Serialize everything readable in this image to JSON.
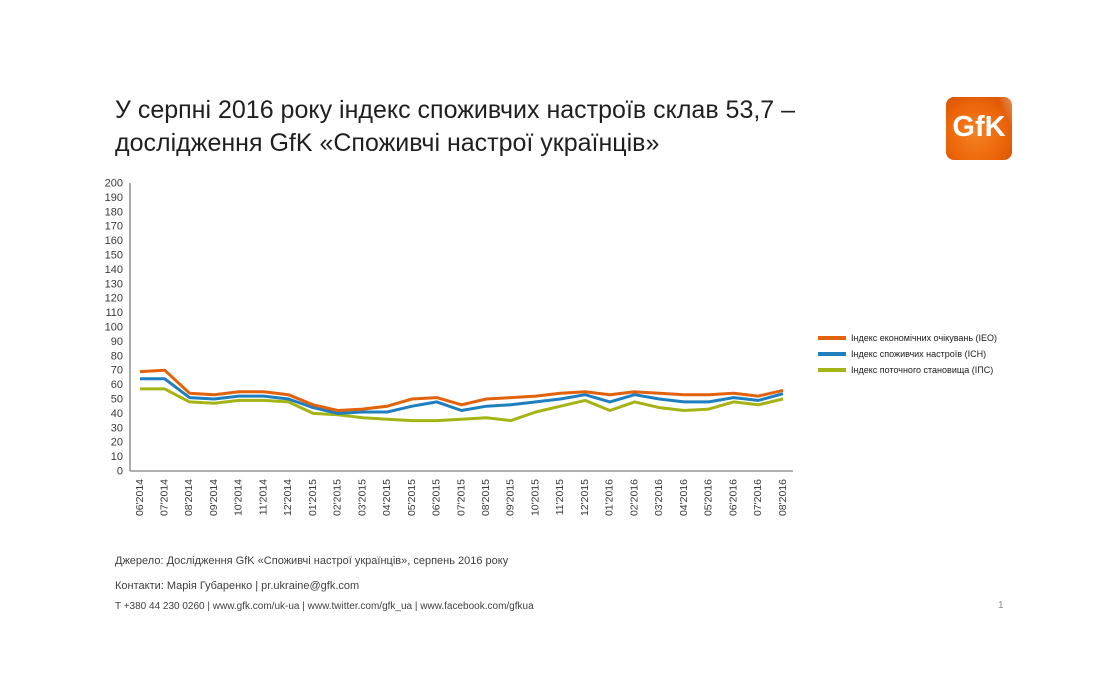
{
  "title": {
    "line1": "У серпні 2016 року індекс споживчих настроїв склав 53,7 –",
    "line2": "дослідження GfK «Споживчі настрої українців»"
  },
  "logo": {
    "text": "GfK",
    "brand_color": "#EC660A"
  },
  "chart_data": {
    "type": "line",
    "categories": [
      "06'2014",
      "07'2014",
      "08'2014",
      "09'2014",
      "10'2014",
      "11'2014",
      "12'2014",
      "01'2015",
      "02'2015",
      "03'2015",
      "04'2015",
      "05'2015",
      "06'2015",
      "07'2015",
      "08'2015",
      "09'2015",
      "10'2015",
      "11'2015",
      "12'2015",
      "01'2016",
      "02'2016",
      "03'2016",
      "04'2016",
      "05'2016",
      "06'2016",
      "07'2016",
      "08'2016"
    ],
    "series": [
      {
        "name": "Індекс економічних очікувань (ІЕО)",
        "color": "#E2620C",
        "values": [
          69,
          70,
          54,
          53,
          55,
          55,
          53,
          46,
          42,
          43,
          45,
          50,
          51,
          46,
          50,
          51,
          52,
          54,
          55,
          53,
          55,
          54,
          53,
          53,
          54,
          52,
          56
        ]
      },
      {
        "name": "Індекс споживчих настроїв (ІСН)",
        "color": "#1F7EC0",
        "values": [
          64,
          64,
          51,
          50,
          52,
          52,
          50,
          44,
          40,
          41,
          41,
          45,
          48,
          42,
          45,
          46,
          48,
          50,
          53,
          48,
          53,
          50,
          48,
          48,
          51,
          49,
          53.7
        ]
      },
      {
        "name": "Індекс поточного становища (ІПС)",
        "color": "#A5B414",
        "values": [
          57,
          57,
          48,
          47,
          49,
          49,
          48,
          40,
          39,
          37,
          36,
          35,
          35,
          36,
          37,
          35,
          41,
          45,
          49,
          42,
          48,
          44,
          42,
          43,
          48,
          46,
          50
        ]
      }
    ],
    "ylim": [
      0,
      200
    ],
    "ytick_step": 10,
    "grid": false,
    "legend_position": "right",
    "axis_color": "#7f7f7f",
    "tick_label_color": "#3a3a3a"
  },
  "footer": {
    "source": "Джерело: Дослідження GfK «Споживчі настрої українців», серпень 2016 року",
    "contacts": "Контакти: Марія Губаренко | pr.ukraine@gfk.com",
    "info": "T +380 44 230 0260 | www.gfk.com/uk-ua | www.twitter.com/gfk_ua | www.facebook.com/gfkua",
    "page_number": "1"
  }
}
